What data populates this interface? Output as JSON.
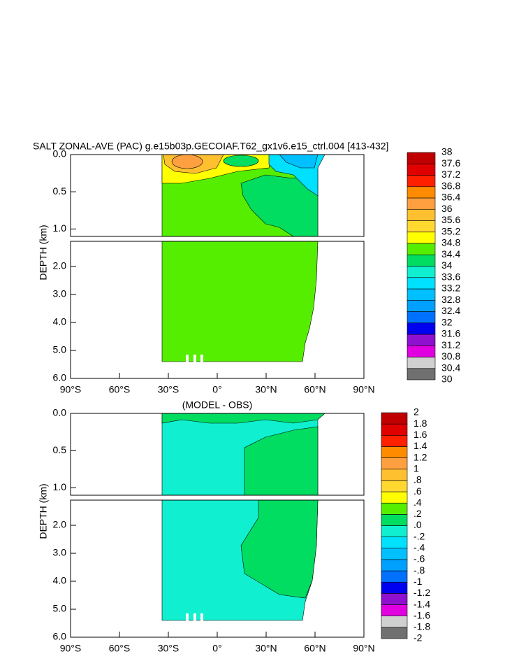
{
  "chart_data": [
    {
      "type": "contour",
      "title": "SALT ZONAL-AVE (PAC) g.e15b03p.GECOIAF.T62_gx1v6.e15_ctrl.004 [413-432]",
      "ylabel": "DEPTH (km)",
      "xlim": [
        -90,
        90
      ],
      "xticks": [
        {
          "value": -90,
          "label": "90°S"
        },
        {
          "value": -60,
          "label": "60°S"
        },
        {
          "value": -30,
          "label": "30°S"
        },
        {
          "value": 0,
          "label": "0°"
        },
        {
          "value": 30,
          "label": "30°N"
        },
        {
          "value": 60,
          "label": "60°N"
        },
        {
          "value": 90,
          "label": "90°N"
        }
      ],
      "ylim": [
        0,
        6
      ],
      "depth_break": 1.1,
      "yticks": [
        {
          "value": 0,
          "label": "0.0"
        },
        {
          "value": 0.5,
          "label": "0.5"
        },
        {
          "value": 1,
          "label": "1.0"
        },
        {
          "value": 2,
          "label": "2.0"
        },
        {
          "value": 3,
          "label": "3.0"
        },
        {
          "value": 4,
          "label": "4.0"
        },
        {
          "value": 5,
          "label": "5.0"
        },
        {
          "value": 6,
          "label": "6.0"
        }
      ],
      "levels": [
        30,
        30.4,
        30.8,
        31.2,
        31.6,
        32,
        32.4,
        32.8,
        33.2,
        33.6,
        34,
        34.4,
        34.8,
        35.2,
        35.6,
        36,
        36.4,
        36.8,
        37.2,
        37.6,
        38
      ],
      "colors": [
        "#707070",
        "#d0d0d0",
        "#e000e0",
        "#9010d0",
        "#0000f0",
        "#0070ff",
        "#00a0ff",
        "#00c0ff",
        "#00e0ff",
        "#10f0d0",
        "#00dd60",
        "#55ee00",
        "#ffff00",
        "#ffd830",
        "#ffc030",
        "#ffa040",
        "#ff8c00",
        "#ff2000",
        "#e00000",
        "#c00000"
      ]
    },
    {
      "type": "contour",
      "title": "(MODEL - OBS)",
      "ylabel": "DEPTH (km)",
      "xlim": [
        -90,
        90
      ],
      "xticks": [
        {
          "value": -90,
          "label": "90°S"
        },
        {
          "value": -60,
          "label": "60°S"
        },
        {
          "value": -30,
          "label": "30°S"
        },
        {
          "value": 0,
          "label": "0°"
        },
        {
          "value": 30,
          "label": "30°N"
        },
        {
          "value": 60,
          "label": "60°N"
        },
        {
          "value": 90,
          "label": "90°N"
        }
      ],
      "ylim": [
        0,
        6
      ],
      "depth_break": 1.1,
      "yticks": [
        {
          "value": 0,
          "label": "0.0"
        },
        {
          "value": 0.5,
          "label": "0.5"
        },
        {
          "value": 1,
          "label": "1.0"
        },
        {
          "value": 2,
          "label": "2.0"
        },
        {
          "value": 3,
          "label": "3.0"
        },
        {
          "value": 4,
          "label": "4.0"
        },
        {
          "value": 5,
          "label": "5.0"
        },
        {
          "value": 6,
          "label": "6.0"
        }
      ],
      "levels": [
        -2,
        -1.8,
        -1.6,
        -1.4,
        -1.2,
        -1,
        {
          "value": -0.8,
          "label": "-.8"
        },
        {
          "value": -0.6,
          "label": "-.6"
        },
        {
          "value": -0.4,
          "label": "-.4"
        },
        {
          "value": -0.2,
          "label": "-.2"
        },
        {
          "value": 0,
          "label": ".0"
        },
        {
          "value": 0.2,
          "label": ".2"
        },
        {
          "value": 0.4,
          "label": ".4"
        },
        {
          "value": 0.6,
          "label": ".6"
        },
        {
          "value": 0.8,
          "label": ".8"
        },
        1,
        1.2,
        1.4,
        1.6,
        1.8,
        2
      ],
      "colors": [
        "#707070",
        "#d0d0d0",
        "#e000e0",
        "#9010d0",
        "#0000f0",
        "#0070ff",
        "#00a0ff",
        "#00c0ff",
        "#00e0ff",
        "#10f0d0",
        "#00dd60",
        "#55ee00",
        "#ffff00",
        "#ffd830",
        "#ffc030",
        "#ffa040",
        "#ff8c00",
        "#ff2000",
        "#e00000",
        "#c00000"
      ]
    }
  ]
}
